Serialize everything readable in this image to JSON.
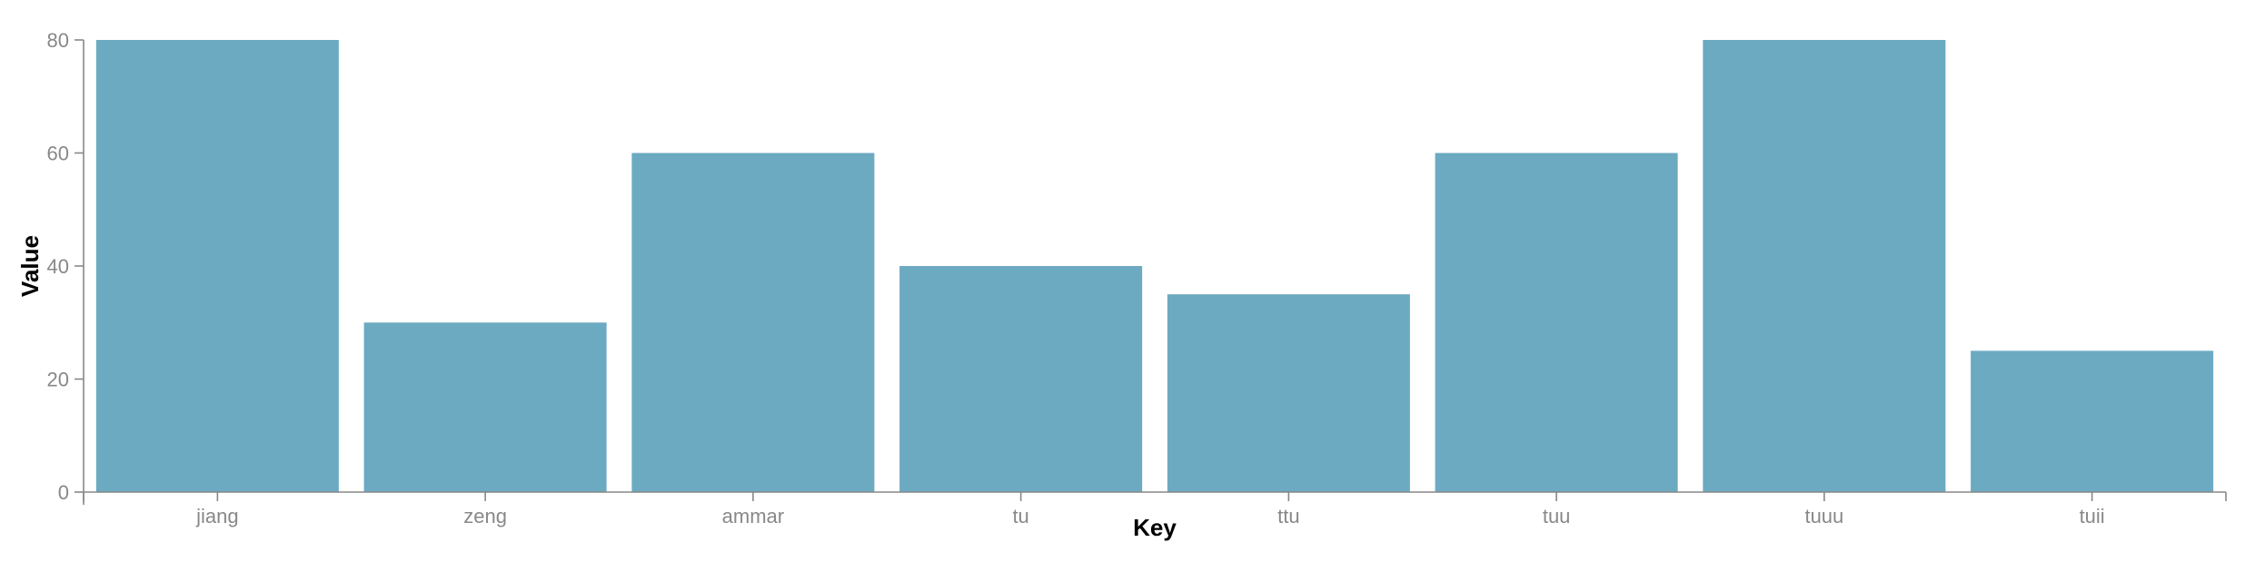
{
  "chart_data": {
    "type": "bar",
    "categories": [
      "jiang",
      "zeng",
      "ammar",
      "tu",
      "ttu",
      "tuu",
      "tuuu",
      "tuii"
    ],
    "values": [
      80,
      30,
      60,
      40,
      35,
      60,
      80,
      25
    ],
    "title": "",
    "xlabel": "Key",
    "ylabel": "Value",
    "ylim": [
      0,
      80
    ],
    "yticks": [
      0,
      20,
      40,
      60,
      80
    ],
    "grid": false,
    "legend": "none",
    "bar_color": "#6caac1"
  }
}
